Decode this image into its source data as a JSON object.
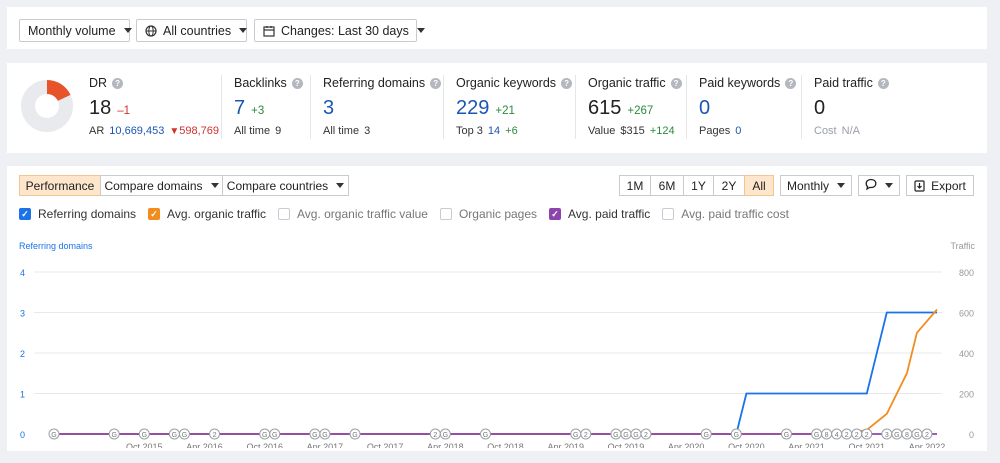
{
  "toolbar": {
    "volume": "Monthly volume",
    "countries": "All countries",
    "changes": "Changes: Last 30 days"
  },
  "metrics": {
    "dr": {
      "label": "DR",
      "value": "18",
      "delta": "–1",
      "ar_label": "AR",
      "ar_value": "10,669,453",
      "ar_delta": "598,769",
      "dr_fraction": 0.18
    },
    "backlinks": {
      "label": "Backlinks",
      "value": "7",
      "delta": "+3",
      "sub_label": "All time",
      "sub_value": "9"
    },
    "referring_domains": {
      "label": "Referring domains",
      "value": "3",
      "sub_label": "All time",
      "sub_value": "3"
    },
    "organic_keywords": {
      "label": "Organic keywords",
      "value": "229",
      "delta": "+21",
      "sub_label": "Top 3",
      "sub_value": "14",
      "sub_delta": "+6"
    },
    "organic_traffic": {
      "label": "Organic traffic",
      "value": "615",
      "delta": "+267",
      "sub_label": "Value",
      "sub_value": "$315",
      "sub_delta": "+124"
    },
    "paid_keywords": {
      "label": "Paid keywords",
      "value": "0",
      "sub_label": "Pages",
      "sub_value": "0"
    },
    "paid_traffic": {
      "label": "Paid traffic",
      "value": "0",
      "sub_label": "Cost",
      "sub_value": "N/A"
    }
  },
  "chart_controls": {
    "tabs": [
      "Performance",
      "Compare domains",
      "Compare countries"
    ],
    "ranges": [
      "1M",
      "6M",
      "1Y",
      "2Y",
      "All"
    ],
    "active_range": "All",
    "interval": "Monthly",
    "export": "Export"
  },
  "series_toggles": [
    {
      "label": "Referring domains",
      "checked": true,
      "color": "#1a73e8"
    },
    {
      "label": "Avg. organic traffic",
      "checked": true,
      "color": "#f28c1c"
    },
    {
      "label": "Avg. organic traffic value",
      "checked": false,
      "color": "#c8cbd0"
    },
    {
      "label": "Organic pages",
      "checked": false,
      "color": "#c8cbd0"
    },
    {
      "label": "Avg. paid traffic",
      "checked": true,
      "color": "#8e44ad"
    },
    {
      "label": "Avg. paid traffic cost",
      "checked": false,
      "color": "#c8cbd0"
    }
  ],
  "chart_data": {
    "type": "line",
    "left_axis_label": "Referring domains",
    "right_axis_label": "Traffic",
    "left_ticks": [
      "0",
      "1",
      "2",
      "3",
      "4"
    ],
    "right_ticks": [
      "0",
      "200",
      "400",
      "600",
      "800"
    ],
    "left_ylim": [
      0,
      4
    ],
    "right_ylim": [
      0,
      800
    ],
    "x_ticks": [
      "Oct 2015",
      "Apr 2016",
      "Oct 2016",
      "Apr 2017",
      "Oct 2017",
      "Apr 2018",
      "Oct 2018",
      "Apr 2019",
      "Oct 2019",
      "Apr 2020",
      "Oct 2020",
      "Apr 2021",
      "Oct 2021",
      "Apr 2022"
    ],
    "x_range": [
      "2015-01",
      "2022-05"
    ],
    "series": [
      {
        "name": "Referring domains",
        "axis": "left",
        "color": "#1a73e8",
        "points": [
          [
            "2015-01",
            0
          ],
          [
            "2020-09",
            0
          ],
          [
            "2020-10",
            1
          ],
          [
            "2021-10",
            1
          ],
          [
            "2021-12",
            3
          ],
          [
            "2022-05",
            3
          ]
        ]
      },
      {
        "name": "Avg. organic traffic",
        "axis": "right",
        "color": "#f28c1c",
        "points": [
          [
            "2015-01",
            0
          ],
          [
            "2021-08",
            0
          ],
          [
            "2021-10",
            20
          ],
          [
            "2021-12",
            100
          ],
          [
            "2022-02",
            300
          ],
          [
            "2022-03",
            500
          ],
          [
            "2022-05",
            615
          ]
        ]
      },
      {
        "name": "Avg. paid traffic",
        "axis": "right",
        "color": "#8e44ad",
        "points": [
          [
            "2015-01",
            0
          ],
          [
            "2022-05",
            0
          ]
        ]
      }
    ],
    "annotations": [
      {
        "date": "2015-01",
        "label": "G"
      },
      {
        "date": "2015-07",
        "label": "G"
      },
      {
        "date": "2015-10",
        "label": "G"
      },
      {
        "date": "2016-01",
        "label": "G"
      },
      {
        "date": "2016-02",
        "label": "G"
      },
      {
        "date": "2016-05",
        "label": "2"
      },
      {
        "date": "2016-10",
        "label": "G"
      },
      {
        "date": "2016-11",
        "label": "G"
      },
      {
        "date": "2017-03",
        "label": "G"
      },
      {
        "date": "2017-04",
        "label": "G"
      },
      {
        "date": "2017-07",
        "label": "G"
      },
      {
        "date": "2018-03",
        "label": "2"
      },
      {
        "date": "2018-04",
        "label": "G"
      },
      {
        "date": "2018-08",
        "label": "G"
      },
      {
        "date": "2019-05",
        "label": "G"
      },
      {
        "date": "2019-06",
        "label": "2"
      },
      {
        "date": "2019-09",
        "label": "G"
      },
      {
        "date": "2019-10",
        "label": "G"
      },
      {
        "date": "2019-11",
        "label": "G"
      },
      {
        "date": "2019-12",
        "label": "2"
      },
      {
        "date": "2020-06",
        "label": "G"
      },
      {
        "date": "2020-09",
        "label": "G"
      },
      {
        "date": "2021-02",
        "label": "G"
      },
      {
        "date": "2021-05",
        "label": "G"
      },
      {
        "date": "2021-06",
        "label": "8"
      },
      {
        "date": "2021-07",
        "label": "4"
      },
      {
        "date": "2021-08",
        "label": "2"
      },
      {
        "date": "2021-09",
        "label": "2"
      },
      {
        "date": "2021-10",
        "label": "2"
      },
      {
        "date": "2021-12",
        "label": "3"
      },
      {
        "date": "2022-01",
        "label": "G"
      },
      {
        "date": "2022-02",
        "label": "8"
      },
      {
        "date": "2022-03",
        "label": "G"
      },
      {
        "date": "2022-04",
        "label": "2"
      }
    ]
  }
}
